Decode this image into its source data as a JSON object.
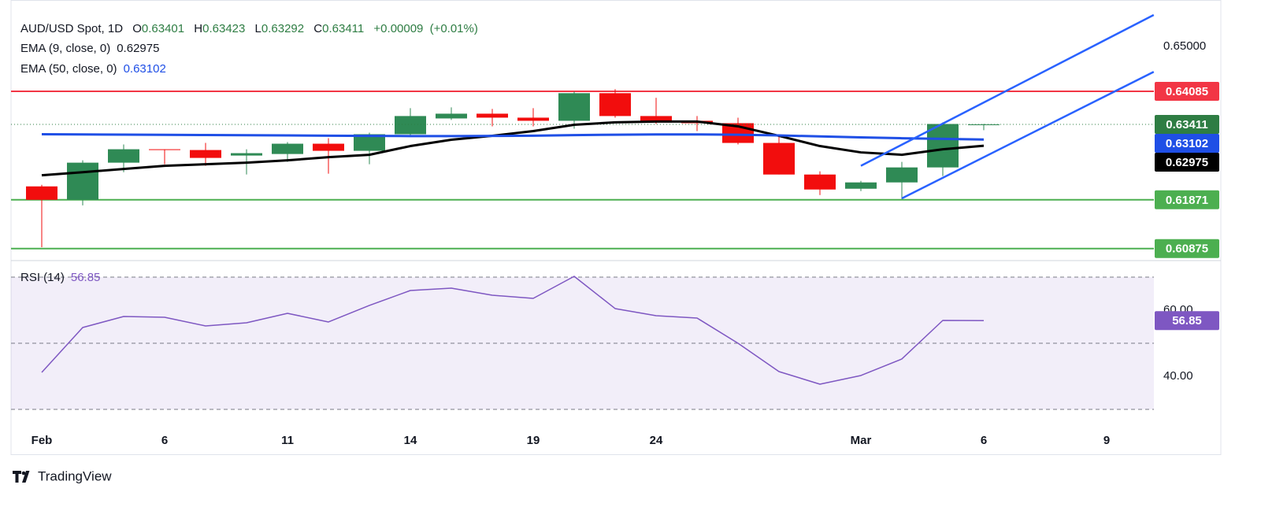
{
  "chart_data": [
    {
      "type": "candlestick",
      "title": "AUD/USD Spot, 1D",
      "ohlc_labels": [
        "O",
        "H",
        "L",
        "C"
      ],
      "change": "+0.00009",
      "change_pct": "(+0.01%)",
      "categories": [
        "Feb",
        null,
        null,
        "6",
        null,
        null,
        "11",
        null,
        null,
        "14",
        null,
        null,
        "19",
        null,
        null,
        "24",
        null,
        null,
        null,
        null,
        "Mar",
        null,
        null,
        "6",
        null,
        null,
        "9"
      ],
      "open": [
        0.62145,
        0.61871,
        0.62629,
        0.62903,
        0.62887,
        0.62774,
        0.62806,
        0.63016,
        0.62871,
        0.6321,
        0.63532,
        0.63629,
        0.63548,
        0.63484,
        0.64048,
        0.63581,
        0.63484,
        0.63435,
        0.63032,
        0.62387,
        0.62097,
        0.62226,
        0.62532,
        0.63401,
        null,
        null,
        null
      ],
      "high": [
        0.62177,
        0.62677,
        0.63,
        0.62903,
        0.63032,
        0.62903,
        0.63048,
        0.63129,
        0.63242,
        0.63742,
        0.63758,
        0.63726,
        0.63742,
        0.64081,
        0.64129,
        0.63952,
        0.63581,
        0.63548,
        0.63177,
        0.62452,
        0.62258,
        0.62645,
        0.63452,
        0.63423,
        null,
        null,
        null
      ],
      "low": [
        0.60903,
        0.61758,
        0.62435,
        0.62597,
        0.62565,
        0.62387,
        0.62645,
        0.62403,
        0.62597,
        0.63177,
        0.635,
        0.63371,
        0.63371,
        0.63323,
        0.63548,
        0.63419,
        0.63274,
        0.63,
        0.62387,
        0.61968,
        0.62048,
        0.61887,
        0.62355,
        0.63292,
        null,
        null,
        null
      ],
      "close": [
        0.61871,
        0.62629,
        0.62903,
        0.62887,
        0.62726,
        0.62823,
        0.63016,
        0.62871,
        0.6321,
        0.63581,
        0.63629,
        0.63548,
        0.63484,
        0.64048,
        0.63581,
        0.63484,
        0.63435,
        0.63032,
        0.62387,
        0.62081,
        0.62226,
        0.62532,
        0.63419,
        0.63411,
        null,
        null,
        null
      ],
      "up_color": "#2f8a55",
      "down_color": "#f20d0d",
      "last_badge_color": "#2e7d43",
      "series": [
        {
          "name": "EMA (9, close, 0)",
          "color": "#000000",
          "values": [
            0.62371,
            0.62435,
            0.625,
            0.62565,
            0.62597,
            0.62629,
            0.62677,
            0.62742,
            0.6279,
            0.62968,
            0.63097,
            0.63177,
            0.63274,
            0.63403,
            0.63452,
            0.63468,
            0.63468,
            0.63371,
            0.63177,
            0.62968,
            0.62839,
            0.6279,
            0.62903,
            0.62975,
            null,
            null,
            null
          ]
        },
        {
          "name": "EMA (50, close, 0)",
          "color": "#1f4fe6",
          "values": [
            0.6321,
            0.63206,
            0.63202,
            0.63198,
            0.63194,
            0.6319,
            0.63185,
            0.6318,
            0.63175,
            0.63172,
            0.63172,
            0.63175,
            0.6318,
            0.63192,
            0.632,
            0.63205,
            0.63206,
            0.632,
            0.63185,
            0.63165,
            0.63145,
            0.63128,
            0.63115,
            0.63102,
            null,
            null,
            null
          ]
        }
      ],
      "levels": [
        {
          "value": 0.64085,
          "color": "#f23645"
        },
        {
          "value": 0.61871,
          "color": "#4caf50"
        },
        {
          "value": 0.60875,
          "color": "#4caf50"
        }
      ],
      "channels": [
        {
          "x": [
            20,
            27.15
          ],
          "y": [
            0.62565,
            0.65645
          ],
          "color": "#2962ff"
        },
        {
          "x": [
            21,
            27.15
          ],
          "y": [
            0.619,
            0.64484
          ],
          "color": "#2962ff"
        }
      ],
      "ylim": [
        0.6063,
        0.6595
      ],
      "yticks": [
        {
          "value": 0.65,
          "label": "0.65000"
        }
      ]
    },
    {
      "type": "line",
      "series": [
        {
          "name": "RSI (14)",
          "color": "#7e57c2",
          "values": [
            41.19,
            54.76,
            58.1,
            57.86,
            55.24,
            56.19,
            59.05,
            56.43,
            61.43,
            65.95,
            66.67,
            64.52,
            63.57,
            70.24,
            60.48,
            58.33,
            57.62,
            50,
            41.43,
            37.62,
            40.24,
            45.24,
            56.9,
            56.85,
            null,
            null,
            null
          ]
        }
      ],
      "band": [
        30,
        70
      ],
      "guides": [
        70,
        50,
        30
      ],
      "ylim": [
        23.33,
        74.52
      ],
      "yticks": [
        {
          "value": 40,
          "label": "40.00"
        },
        {
          "value": 60,
          "label": "60.00"
        }
      ]
    }
  ]
}
